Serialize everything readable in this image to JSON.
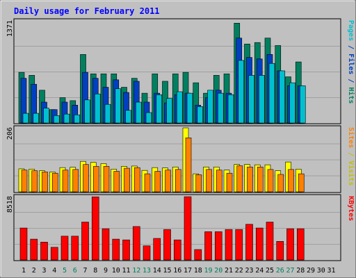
{
  "chart_data": {
    "type": "bar",
    "title": "Daily usage for February 2011",
    "x_labels": [
      "1",
      "2",
      "3",
      "4",
      "5",
      "6",
      "7",
      "8",
      "9",
      "10",
      "11",
      "12",
      "13",
      "14",
      "15",
      "16",
      "17",
      "18",
      "19",
      "20",
      "21",
      "22",
      "23",
      "24",
      "25",
      "26",
      "27",
      "28",
      "29",
      "30",
      "31"
    ],
    "weekend_days": [
      5,
      6,
      12,
      13,
      19,
      20,
      26,
      27
    ],
    "days_with_data": 28,
    "panels": [
      {
        "id": "hits-files-pages",
        "max_label": "1371",
        "ylim": [
          0,
          1371
        ],
        "side_label": {
          "parts": [
            "Pages",
            " / ",
            "Files",
            " / ",
            "Hits"
          ],
          "colors": [
            "#00c0d0",
            "#0040c0",
            "#0040c0",
            "#0040c0",
            "#008060"
          ]
        },
        "series": [
          {
            "name": "Hits",
            "color": "#008060",
            "values": [
              680,
              640,
              440,
              180,
              340,
              300,
              920,
              660,
              660,
              660,
              480,
              600,
              400,
              660,
              560,
              660,
              680,
              540,
              400,
              640,
              660,
              1340,
              1060,
              1080,
              1140,
              1040,
              620,
              820
            ]
          },
          {
            "name": "Files",
            "color": "#0040c0",
            "values": [
              600,
              520,
              280,
              180,
              280,
              240,
              680,
              600,
              480,
              580,
              410,
              560,
              280,
              400,
              270,
              380,
              400,
              240,
              340,
              440,
              400,
              1140,
              880,
              860,
              920,
              700,
              500,
              500
            ]
          },
          {
            "name": "Pages",
            "color": "#00c0d0",
            "values": [
              130,
              130,
              200,
              100,
              120,
              110,
              310,
              390,
              250,
              460,
              170,
              280,
              140,
              380,
              330,
              420,
              400,
              220,
              440,
              400,
              380,
              840,
              640,
              640,
              800,
              700,
              540,
              500
            ]
          }
        ]
      },
      {
        "id": "visits-sites",
        "max_label": "206",
        "ylim": [
          0,
          206
        ],
        "side_label": {
          "parts": [
            "Sites",
            " / ",
            "Visits"
          ],
          "colors": [
            "#ff8000",
            "#c0c000",
            "#c0c000"
          ]
        },
        "series": [
          {
            "name": "Visits",
            "color": "#ffff00",
            "values": [
              74,
              73,
              68,
              64,
              78,
              79,
              98,
              95,
              91,
              73,
              82,
              83,
              69,
              78,
              77,
              80,
              206,
              58,
              80,
              80,
              70,
              88,
              88,
              87,
              87,
              68,
              96,
              73
            ]
          },
          {
            "name": "Sites",
            "color": "#ff8000",
            "values": [
              70,
              68,
              64,
              60,
              70,
              72,
              88,
              82,
              82,
              66,
              76,
              78,
              58,
              66,
              70,
              72,
              174,
              55,
              72,
              70,
              60,
              84,
              80,
              80,
              72,
              56,
              72,
              58
            ]
          }
        ]
      },
      {
        "id": "kbytes",
        "max_label": "8518",
        "ylim": [
          0,
          8518
        ],
        "side_label": {
          "parts": [
            "KBytes"
          ],
          "colors": [
            "#ff0000"
          ]
        },
        "series": [
          {
            "name": "KBytes",
            "color": "#ff0000",
            "values": [
              4300,
              2800,
              2400,
              1700,
              3200,
              3200,
              5100,
              8500,
              4200,
              2800,
              2700,
              4500,
              1900,
              2900,
              4100,
              2700,
              8518,
              1400,
              3800,
              3800,
              4100,
              4100,
              4800,
              4300,
              5100,
              2500,
              4200,
              4200
            ]
          }
        ]
      }
    ],
    "colors": {
      "background": "#c0c0c0",
      "frame": "#e8e8e8",
      "title": "#0000ff",
      "day_label": "#000000",
      "weekend_label": "#00805c",
      "grid": "#808080"
    }
  }
}
